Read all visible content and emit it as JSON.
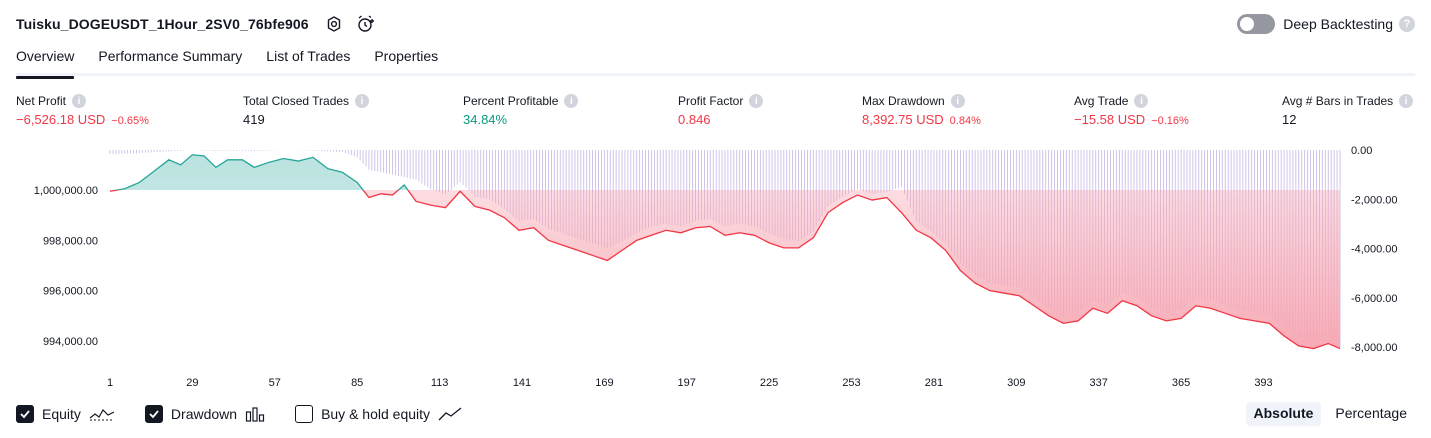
{
  "header": {
    "strategy_name": "Tuisku_DOGEUSDT_1Hour_2SV0_76bfe906",
    "deep_backtesting_label": "Deep Backtesting",
    "deep_backtesting_enabled": false
  },
  "tabs": [
    {
      "label": "Overview",
      "active": true
    },
    {
      "label": "Performance Summary",
      "active": false
    },
    {
      "label": "List of Trades",
      "active": false
    },
    {
      "label": "Properties",
      "active": false
    }
  ],
  "metrics": {
    "net_profit": {
      "label": "Net Profit",
      "value": "−6,526.18 USD",
      "pct": "−0.65%"
    },
    "total_closed_trades": {
      "label": "Total Closed Trades",
      "value": "419"
    },
    "percent_profitable": {
      "label": "Percent Profitable",
      "value": "34.84%"
    },
    "profit_factor": {
      "label": "Profit Factor",
      "value": "0.846"
    },
    "max_drawdown": {
      "label": "Max Drawdown",
      "value": "8,392.75 USD",
      "pct": "0.84%"
    },
    "avg_trade": {
      "label": "Avg Trade",
      "value": "−15.58 USD",
      "pct": "−0.16%"
    },
    "avg_bars": {
      "label": "Avg # Bars in Trades",
      "value": "12"
    }
  },
  "chart_data": {
    "type": "area",
    "x_ticks": [
      "1",
      "29",
      "57",
      "85",
      "113",
      "141",
      "169",
      "197",
      "225",
      "253",
      "281",
      "309",
      "337",
      "365",
      "393"
    ],
    "left_axis": {
      "ticks": [
        "1,000,000.00",
        "998,000.00",
        "996,000.00",
        "994,000.00"
      ],
      "values": [
        1000000,
        998000,
        996000,
        994000
      ]
    },
    "right_axis": {
      "ticks": [
        "0.00",
        "-2,000.00",
        "-4,000.00",
        "-6,000.00",
        "-8,000.00"
      ],
      "values": [
        0,
        -2000,
        -4000,
        -6000,
        -8000
      ]
    },
    "equity_baseline": 1000000,
    "series": [
      {
        "name": "Equity",
        "x": [
          1,
          6,
          11,
          16,
          21,
          25,
          29,
          33,
          37,
          41,
          46,
          50,
          55,
          60,
          65,
          70,
          75,
          80,
          85,
          89,
          93,
          97,
          101,
          105,
          110,
          115,
          120,
          125,
          130,
          135,
          140,
          145,
          150,
          155,
          160,
          165,
          170,
          175,
          180,
          185,
          190,
          195,
          200,
          205,
          210,
          215,
          220,
          225,
          230,
          235,
          240,
          245,
          250,
          255,
          260,
          265,
          270,
          275,
          280,
          285,
          290,
          295,
          300,
          305,
          310,
          315,
          320,
          325,
          330,
          335,
          340,
          345,
          350,
          355,
          360,
          365,
          370,
          375,
          380,
          385,
          390,
          395,
          400,
          405,
          410,
          415,
          419
        ],
        "values": [
          999950,
          1000050,
          1000300,
          1000750,
          1001200,
          1001000,
          1001400,
          1001350,
          1000900,
          1001200,
          1001200,
          1000900,
          1001100,
          1001250,
          1001150,
          1001300,
          1000850,
          1000700,
          1000300,
          999700,
          999850,
          999800,
          1000200,
          999550,
          999400,
          999300,
          999950,
          999350,
          999200,
          998900,
          998400,
          998500,
          998000,
          997800,
          997600,
          997400,
          997200,
          997600,
          998000,
          998200,
          998400,
          998300,
          998500,
          998550,
          998200,
          998300,
          998200,
          997900,
          997700,
          997700,
          998100,
          999100,
          999500,
          999800,
          999600,
          999700,
          999100,
          998400,
          998100,
          997600,
          996800,
          996300,
          996000,
          995900,
          995800,
          995400,
          995000,
          994700,
          994800,
          995300,
          995100,
          995600,
          995400,
          995000,
          994800,
          994900,
          995400,
          995300,
          995100,
          994900,
          994800,
          994700,
          994200,
          993800,
          993700,
          993900,
          993700
        ]
      },
      {
        "name": "Drawdown",
        "values": [
          -160,
          -150,
          -120,
          -90,
          -60,
          -30,
          0,
          -20,
          -40,
          -20,
          -30,
          -50,
          -20,
          0,
          -10,
          -20,
          -60,
          -80,
          -300,
          -800,
          -900,
          -1000,
          -1100,
          -1200,
          -1600,
          -1800,
          -1300,
          -1900,
          -2000,
          -2400,
          -2900,
          -2800,
          -3200,
          -3400,
          -3600,
          -3800,
          -4000,
          -3700,
          -3400,
          -3100,
          -3000,
          -3100,
          -2900,
          -2800,
          -3100,
          -3000,
          -3100,
          -3400,
          -3600,
          -3700,
          -3300,
          -2300,
          -1900,
          -1600,
          -1800,
          -1700,
          -1500,
          -2900,
          -3300,
          -3800,
          -4600,
          -5100,
          -5400,
          -5500,
          -5600,
          -6000,
          -6400,
          -6700,
          -6600,
          -6100,
          -6300,
          -5800,
          -6000,
          -6400,
          -6600,
          -6500,
          -6000,
          -6100,
          -6300,
          -6500,
          -6600,
          -6700,
          -7200,
          -7600,
          -7700,
          -7500,
          -8000
        ]
      }
    ],
    "legend": [
      {
        "name": "Equity",
        "checked": true
      },
      {
        "name": "Drawdown",
        "checked": true
      },
      {
        "name": "Buy & hold equity",
        "checked": false
      }
    ],
    "colors": {
      "equity_up": "#26a69a",
      "equity_down": "#f23645",
      "drawdown": "#b39ddb",
      "area_up": "#b2dfdb",
      "area_down": "#f7a5b1"
    }
  },
  "footer": {
    "equity_label": "Equity",
    "drawdown_label": "Drawdown",
    "buyhold_label": "Buy & hold equity",
    "absolute_label": "Absolute",
    "percentage_label": "Percentage"
  }
}
